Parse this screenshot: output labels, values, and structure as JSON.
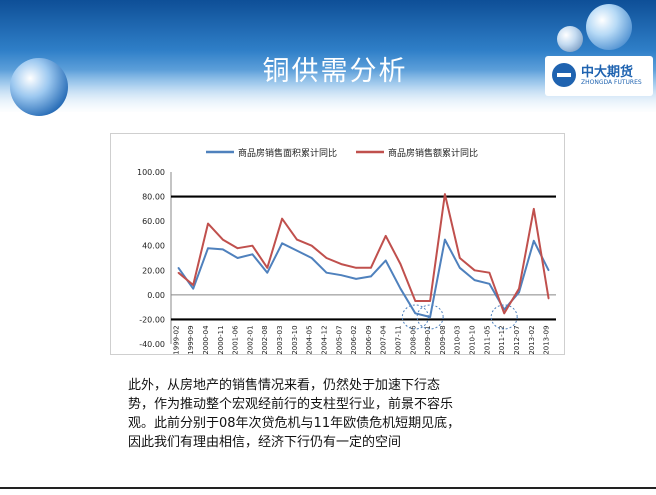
{
  "slide": {
    "title": "铜供需分析",
    "logo": {
      "name_cn": "中大期货",
      "name_en": "ZHONGDA FUTURES"
    },
    "body_lines": [
      "此外，从房地产的销售情况来看，仍然处于加速下行态",
      "势，作为推动整个宏观经前行的支柱型行业，前景不容乐",
      "观。此前分别于08年次贷危机与11年欧债危机短期见底，",
      "因此我们有理由相信，经济下行仍有一定的空间"
    ],
    "colors": {
      "header_blue": "#1f63b0",
      "series_area": "#4f81bd",
      "series_amount": "#c0504d"
    }
  },
  "chart_data": {
    "type": "line",
    "x": [
      "1999-02",
      "1999-09",
      "2000-04",
      "2000-11",
      "2001-06",
      "2002-01",
      "2002-08",
      "2003-03",
      "2003-10",
      "2004-05",
      "2004-12",
      "2005-07",
      "2006-02",
      "2006-09",
      "2007-04",
      "2007-11",
      "2008-06",
      "2009-01",
      "2009-08",
      "2010-03",
      "2010-10",
      "2011-05",
      "2011-12",
      "2012-07",
      "2013-02",
      "2013-09"
    ],
    "series": [
      {
        "name": "商品房销售面积累计同比",
        "color": "#4f81bd",
        "values": [
          22,
          5,
          38,
          37,
          30,
          33,
          18,
          42,
          36,
          30,
          18,
          16,
          13,
          15,
          28,
          5,
          -15,
          -18,
          45,
          22,
          12,
          9,
          -12,
          2,
          44,
          20
        ]
      },
      {
        "name": "商品房销售额累计同比",
        "color": "#c0504d",
        "values": [
          18,
          8,
          58,
          45,
          38,
          40,
          22,
          62,
          45,
          40,
          30,
          25,
          22,
          22,
          48,
          25,
          -5,
          -5,
          82,
          30,
          20,
          18,
          -15,
          5,
          70,
          -3
        ]
      }
    ],
    "yticks": [
      "100.00",
      "80.00",
      "60.00",
      "40.00",
      "20.00",
      "0.00",
      "-20.00",
      "-40.00"
    ],
    "ylim": [
      -40,
      100
    ],
    "reference_lines": [
      80,
      -20
    ],
    "annotations": [
      "circles at 2008-12 lows",
      "circle at 2011-12 lows"
    ]
  }
}
